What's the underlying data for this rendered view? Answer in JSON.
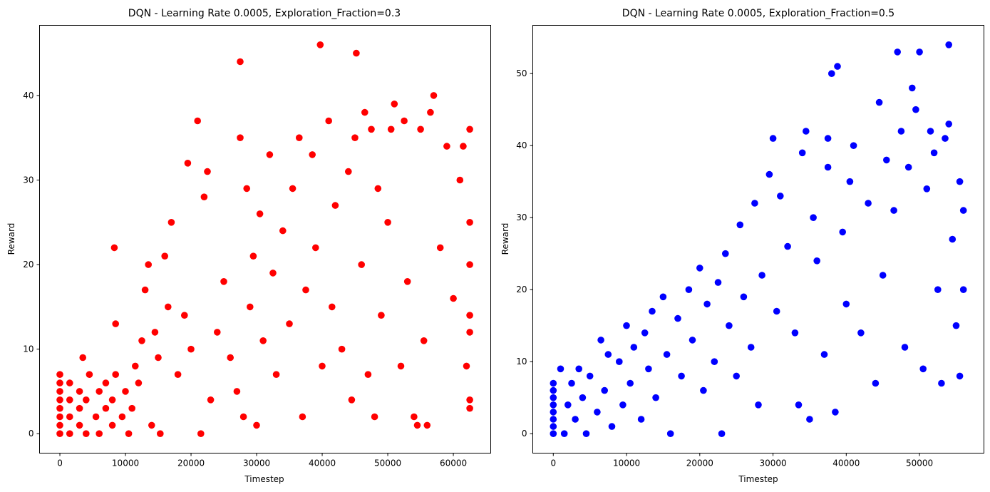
{
  "chart_data": [
    {
      "type": "scatter",
      "title": "DQN - Learning Rate 0.0005, Exploration_Fraction=0.3",
      "xlabel": "Timestep",
      "ylabel": "Reward",
      "xlim": [
        -3100,
        65700
      ],
      "ylim": [
        -2.3,
        48.3
      ],
      "xticks": [
        0,
        10000,
        20000,
        30000,
        40000,
        50000,
        60000
      ],
      "yticks": [
        0,
        10,
        20,
        30,
        40
      ],
      "grid": false,
      "color": "#ff0000",
      "series": [
        {
          "points": [
            [
              0,
              0
            ],
            [
              0,
              1
            ],
            [
              0,
              2
            ],
            [
              0,
              3
            ],
            [
              0,
              4
            ],
            [
              0,
              5
            ],
            [
              0,
              6
            ],
            [
              0,
              7
            ],
            [
              1500,
              0
            ],
            [
              1500,
              2
            ],
            [
              1500,
              4
            ],
            [
              1500,
              6
            ],
            [
              3000,
              1
            ],
            [
              3000,
              3
            ],
            [
              3000,
              5
            ],
            [
              3500,
              9
            ],
            [
              4000,
              0
            ],
            [
              4000,
              4
            ],
            [
              4500,
              7
            ],
            [
              5500,
              2
            ],
            [
              6000,
              5
            ],
            [
              6000,
              0
            ],
            [
              7000,
              3
            ],
            [
              7000,
              6
            ],
            [
              8000,
              1
            ],
            [
              8000,
              4
            ],
            [
              8500,
              7
            ],
            [
              8300,
              22
            ],
            [
              8500,
              13
            ],
            [
              9500,
              2
            ],
            [
              10000,
              5
            ],
            [
              10500,
              0
            ],
            [
              11000,
              3
            ],
            [
              11500,
              8
            ],
            [
              12000,
              6
            ],
            [
              12500,
              11
            ],
            [
              13000,
              17
            ],
            [
              13500,
              20
            ],
            [
              14000,
              1
            ],
            [
              14500,
              12
            ],
            [
              15000,
              9
            ],
            [
              15300,
              0
            ],
            [
              16000,
              21
            ],
            [
              16500,
              15
            ],
            [
              17000,
              25
            ],
            [
              18000,
              7
            ],
            [
              19000,
              14
            ],
            [
              19500,
              32
            ],
            [
              20000,
              10
            ],
            [
              21000,
              37
            ],
            [
              21500,
              0
            ],
            [
              22000,
              28
            ],
            [
              22500,
              31
            ],
            [
              23000,
              4
            ],
            [
              24000,
              12
            ],
            [
              25000,
              18
            ],
            [
              26000,
              9
            ],
            [
              27000,
              5
            ],
            [
              27500,
              44
            ],
            [
              27500,
              35
            ],
            [
              28000,
              2
            ],
            [
              28500,
              29
            ],
            [
              29000,
              15
            ],
            [
              29500,
              21
            ],
            [
              30000,
              1
            ],
            [
              30500,
              26
            ],
            [
              31000,
              11
            ],
            [
              32000,
              33
            ],
            [
              32500,
              19
            ],
            [
              33000,
              7
            ],
            [
              34000,
              24
            ],
            [
              35000,
              13
            ],
            [
              35500,
              29
            ],
            [
              36500,
              35
            ],
            [
              37000,
              2
            ],
            [
              37500,
              17
            ],
            [
              38500,
              33
            ],
            [
              39000,
              22
            ],
            [
              39700,
              46
            ],
            [
              40000,
              8
            ],
            [
              41000,
              37
            ],
            [
              41500,
              15
            ],
            [
              42000,
              27
            ],
            [
              43000,
              10
            ],
            [
              44000,
              31
            ],
            [
              44500,
              4
            ],
            [
              45000,
              35
            ],
            [
              45200,
              45
            ],
            [
              46000,
              20
            ],
            [
              46500,
              38
            ],
            [
              47000,
              7
            ],
            [
              47500,
              36
            ],
            [
              48000,
              2
            ],
            [
              48500,
              29
            ],
            [
              49000,
              14
            ],
            [
              50000,
              25
            ],
            [
              50500,
              36
            ],
            [
              51000,
              39
            ],
            [
              52000,
              8
            ],
            [
              52500,
              37
            ],
            [
              53000,
              18
            ],
            [
              54000,
              2
            ],
            [
              54500,
              1
            ],
            [
              55000,
              36
            ],
            [
              55500,
              11
            ],
            [
              56000,
              1
            ],
            [
              56500,
              38
            ],
            [
              57000,
              40
            ],
            [
              58000,
              22
            ],
            [
              59000,
              34
            ],
            [
              60000,
              16
            ],
            [
              61000,
              30
            ],
            [
              61500,
              34
            ],
            [
              62000,
              8
            ],
            [
              62500,
              36
            ],
            [
              62500,
              4
            ],
            [
              62500,
              3
            ],
            [
              62500,
              14
            ],
            [
              62500,
              25
            ],
            [
              62500,
              20
            ],
            [
              62500,
              12
            ]
          ]
        }
      ]
    },
    {
      "type": "scatter",
      "title": "DQN - Learning Rate 0.0005, Exploration_Fraction=0.5",
      "xlabel": "Timestep",
      "ylabel": "Reward",
      "xlim": [
        -2800,
        58800
      ],
      "ylim": [
        -2.7,
        56.7
      ],
      "xticks": [
        0,
        10000,
        20000,
        30000,
        40000,
        50000
      ],
      "yticks": [
        0,
        10,
        20,
        30,
        40,
        50
      ],
      "grid": false,
      "color": "#0000ff",
      "series": [
        {
          "points": [
            [
              0,
              0
            ],
            [
              0,
              1
            ],
            [
              0,
              2
            ],
            [
              0,
              3
            ],
            [
              0,
              4
            ],
            [
              0,
              5
            ],
            [
              0,
              6
            ],
            [
              0,
              7
            ],
            [
              1000,
              9
            ],
            [
              1500,
              0
            ],
            [
              2000,
              4
            ],
            [
              2500,
              7
            ],
            [
              3000,
              2
            ],
            [
              3500,
              9
            ],
            [
              4000,
              5
            ],
            [
              4500,
              0
            ],
            [
              5000,
              8
            ],
            [
              6000,
              3
            ],
            [
              6500,
              13
            ],
            [
              7000,
              6
            ],
            [
              7500,
              11
            ],
            [
              8000,
              1
            ],
            [
              9000,
              10
            ],
            [
              9500,
              4
            ],
            [
              10000,
              15
            ],
            [
              10500,
              7
            ],
            [
              11000,
              12
            ],
            [
              12000,
              2
            ],
            [
              12500,
              14
            ],
            [
              13000,
              9
            ],
            [
              13500,
              17
            ],
            [
              14000,
              5
            ],
            [
              15000,
              19
            ],
            [
              15500,
              11
            ],
            [
              16000,
              0
            ],
            [
              17000,
              16
            ],
            [
              17500,
              8
            ],
            [
              18500,
              20
            ],
            [
              19000,
              13
            ],
            [
              20000,
              23
            ],
            [
              20500,
              6
            ],
            [
              21000,
              18
            ],
            [
              22000,
              10
            ],
            [
              22500,
              21
            ],
            [
              23000,
              0
            ],
            [
              23500,
              25
            ],
            [
              24000,
              15
            ],
            [
              25000,
              8
            ],
            [
              25500,
              29
            ],
            [
              26000,
              19
            ],
            [
              27000,
              12
            ],
            [
              27500,
              32
            ],
            [
              28000,
              4
            ],
            [
              28500,
              22
            ],
            [
              29500,
              36
            ],
            [
              30000,
              41
            ],
            [
              30500,
              17
            ],
            [
              31000,
              33
            ],
            [
              32000,
              26
            ],
            [
              33000,
              14
            ],
            [
              33500,
              4
            ],
            [
              34000,
              39
            ],
            [
              34500,
              42
            ],
            [
              35000,
              2
            ],
            [
              35500,
              30
            ],
            [
              36000,
              24
            ],
            [
              37000,
              11
            ],
            [
              37500,
              37
            ],
            [
              37500,
              41
            ],
            [
              38000,
              50
            ],
            [
              38500,
              3
            ],
            [
              38800,
              51
            ],
            [
              39500,
              28
            ],
            [
              40000,
              18
            ],
            [
              40500,
              35
            ],
            [
              41000,
              40
            ],
            [
              42000,
              14
            ],
            [
              43000,
              32
            ],
            [
              44000,
              7
            ],
            [
              44500,
              46
            ],
            [
              45000,
              22
            ],
            [
              45500,
              38
            ],
            [
              46500,
              31
            ],
            [
              47000,
              53
            ],
            [
              47500,
              42
            ],
            [
              48000,
              12
            ],
            [
              48500,
              37
            ],
            [
              49000,
              48
            ],
            [
              49500,
              45
            ],
            [
              50000,
              53
            ],
            [
              50500,
              9
            ],
            [
              51000,
              34
            ],
            [
              51500,
              42
            ],
            [
              52000,
              39
            ],
            [
              52500,
              20
            ],
            [
              53000,
              7
            ],
            [
              53500,
              41
            ],
            [
              54000,
              43
            ],
            [
              54000,
              54
            ],
            [
              54500,
              27
            ],
            [
              55000,
              15
            ],
            [
              55500,
              35
            ],
            [
              55500,
              8
            ],
            [
              56000,
              31
            ],
            [
              56000,
              20
            ]
          ]
        }
      ]
    }
  ]
}
